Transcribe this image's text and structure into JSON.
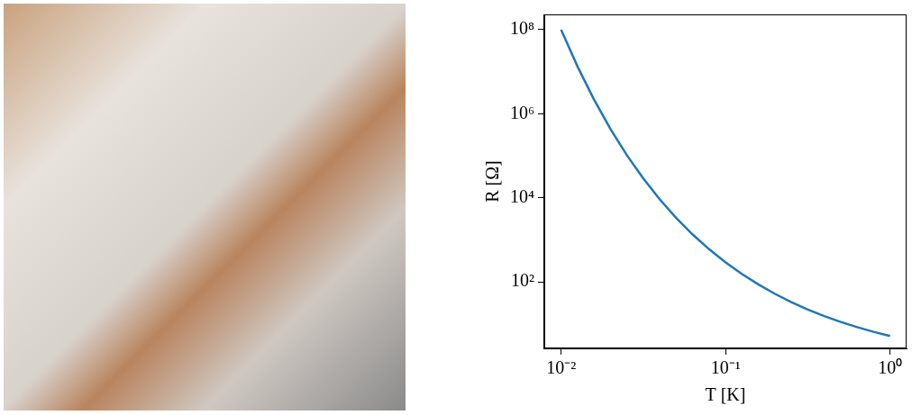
{
  "chart_data": {
    "type": "line",
    "x_label": "T [K]",
    "y_label": "R [Ω]",
    "log": true,
    "grid": false,
    "color": "#1f77b4",
    "x": [
      0.01,
      0.0126,
      0.0158,
      0.02,
      0.0251,
      0.0316,
      0.0398,
      0.0501,
      0.0631,
      0.0794,
      0.1,
      0.126,
      0.158,
      0.2,
      0.251,
      0.316,
      0.398,
      0.501,
      0.631,
      0.794,
      1
    ],
    "values": [
      100000000,
      13100000,
      2210000,
      425000,
      103000,
      28600,
      9120,
      3300,
      1330,
      596,
      289,
      152,
      86.7,
      51.4,
      32.9,
      21.9,
      15.3,
      11.1,
      8.32,
      6.44,
      5.13
    ],
    "xlim": [
      0.0079,
      1.26
    ],
    "ylim": [
      2.6,
      230000000
    ],
    "xticks": [
      {
        "value": 0.01,
        "label": "10⁻²"
      },
      {
        "value": 0.1,
        "label": "10⁻¹"
      },
      {
        "value": 1,
        "label": "10⁰"
      }
    ],
    "yticks": [
      {
        "value": 100,
        "label": "10²"
      },
      {
        "value": 10000,
        "label": "10⁴"
      },
      {
        "value": 1000000,
        "label": "10⁶"
      },
      {
        "value": 100000000,
        "label": "10⁸"
      }
    ]
  }
}
